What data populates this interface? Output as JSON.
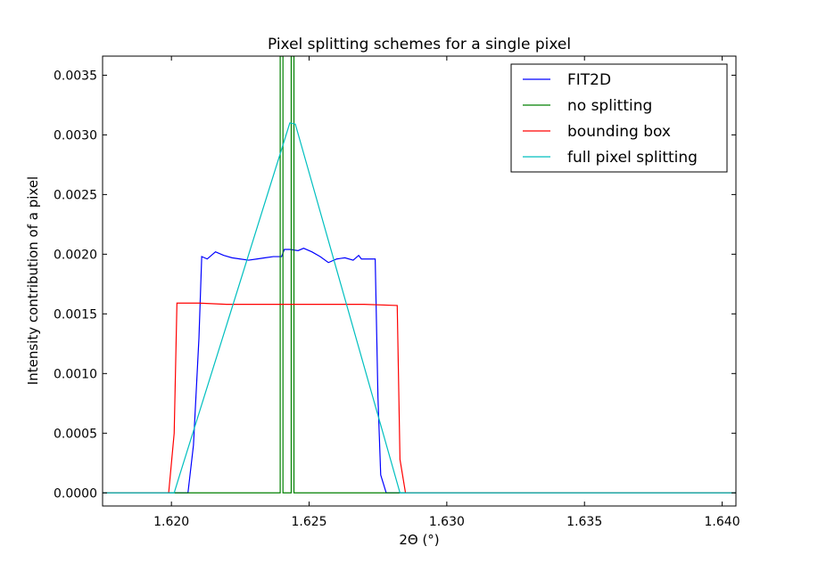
{
  "chart_data": {
    "type": "line",
    "title": "Pixel splitting schemes for a single pixel",
    "xlabel": "2Θ (°)",
    "ylabel": "Intensity contribution of a pixel",
    "xlim": [
      1.6175,
      1.6405
    ],
    "ylim": [
      -0.00011,
      0.00366
    ],
    "xticks": [
      "1.620",
      "1.625",
      "1.630",
      "1.635",
      "1.640"
    ],
    "xtick_values": [
      1.62,
      1.625,
      1.63,
      1.635,
      1.64
    ],
    "yticks": [
      "0.0000",
      "0.0005",
      "0.0010",
      "0.0015",
      "0.0020",
      "0.0025",
      "0.0030",
      "0.0035"
    ],
    "ytick_values": [
      0,
      0.0005,
      0.001,
      0.0015,
      0.002,
      0.0025,
      0.003,
      0.0035
    ],
    "grid": false,
    "legend_position": "top-right",
    "series": [
      {
        "name": "FIT2D",
        "color": "#0000ff",
        "x": [
          1.6175,
          1.6206,
          1.6208,
          1.621,
          1.6211,
          1.6212,
          1.6213,
          1.6216,
          1.6219,
          1.6222,
          1.6225,
          1.6228,
          1.6231,
          1.6234,
          1.6237,
          1.624,
          1.6241,
          1.6243,
          1.6246,
          1.6248,
          1.6251,
          1.6254,
          1.6257,
          1.626,
          1.6263,
          1.6266,
          1.6268,
          1.6269,
          1.6273,
          1.6274,
          1.6275,
          1.6276,
          1.6278,
          1.6405
        ],
        "y": [
          0,
          0,
          0.0004,
          0.0013,
          0.00198,
          0.00197,
          0.00196,
          0.00202,
          0.00199,
          0.00197,
          0.00196,
          0.00195,
          0.00196,
          0.00197,
          0.00198,
          0.00198,
          0.00204,
          0.00204,
          0.00203,
          0.00205,
          0.00202,
          0.00198,
          0.00193,
          0.00196,
          0.00197,
          0.00195,
          0.00199,
          0.00196,
          0.00196,
          0.00196,
          0.0008,
          0.00015,
          0,
          0
        ]
      },
      {
        "name": "no splitting",
        "color": "#008000",
        "x": [
          1.6175,
          1.62395,
          1.62395,
          1.62405,
          1.62405,
          1.62435,
          1.62435,
          1.62445,
          1.62445,
          1.6405
        ],
        "y": [
          0,
          0,
          0.00366,
          0.00366,
          0,
          0,
          0.00366,
          0.00366,
          0,
          0
        ]
      },
      {
        "name": "bounding box",
        "color": "#ff0000",
        "x": [
          1.6175,
          1.6199,
          1.6201,
          1.6202,
          1.621,
          1.622,
          1.624,
          1.626,
          1.627,
          1.6282,
          1.6283,
          1.6285,
          1.6405
        ],
        "y": [
          0,
          0,
          0.0005,
          0.00159,
          0.00159,
          0.00158,
          0.00158,
          0.00158,
          0.00158,
          0.00157,
          0.00028,
          0,
          0
        ]
      },
      {
        "name": "full pixel splitting",
        "color": "#00bfbf",
        "x": [
          1.6175,
          1.6201,
          1.6203,
          1.6243,
          1.6245,
          1.6283,
          1.6284,
          1.6405
        ],
        "y": [
          0,
          0,
          0.00015,
          0.0031,
          0.00309,
          0,
          0,
          0
        ]
      }
    ]
  }
}
